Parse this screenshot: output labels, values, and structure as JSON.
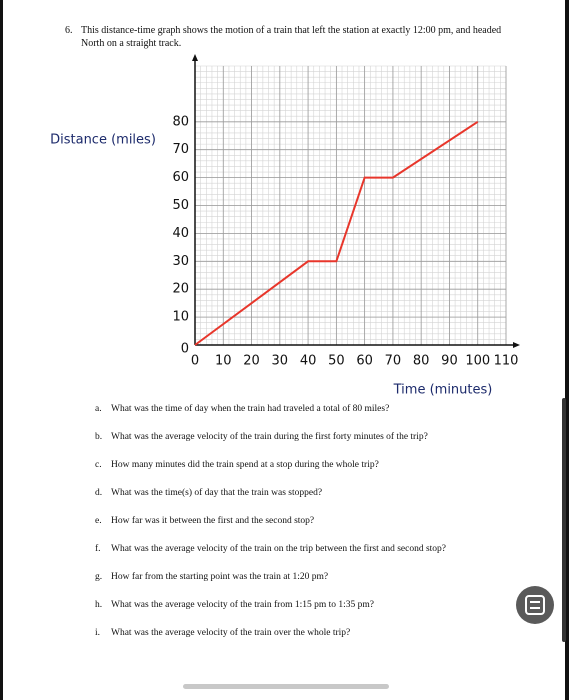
{
  "question": {
    "number": "6.",
    "text": "This distance-time graph shows the motion of a train that left the station at exactly 12:00 pm, and headed North on a straight track."
  },
  "chart_data": {
    "type": "line",
    "x_label": "Time (minutes)",
    "y_label": "Distance (miles)",
    "x": [
      0,
      40,
      50,
      60,
      70,
      100
    ],
    "series": [
      {
        "color": "#e8362b",
        "values": [
          0,
          30,
          30,
          60,
          60,
          80
        ]
      }
    ],
    "xlim": [
      0,
      110
    ],
    "ylim": [
      0,
      100
    ],
    "xticks": [
      0,
      10,
      20,
      30,
      40,
      50,
      60,
      70,
      80,
      90,
      100,
      110
    ],
    "yticks": [
      0,
      10,
      20,
      30,
      40,
      50,
      60,
      70,
      80
    ],
    "grid": true
  },
  "items": [
    {
      "label": "a.",
      "text": "What was the time of day when the train had traveled a total of 80 miles?"
    },
    {
      "label": "b.",
      "text": "What was the average velocity of the train during the first forty minutes of the trip?"
    },
    {
      "label": "c.",
      "text": "How many minutes did the train spend at a stop during the whole trip?"
    },
    {
      "label": "d.",
      "text": "What was the time(s) of day that the train was stopped?"
    },
    {
      "label": "e.",
      "text": "How far was it between the first and the second stop?"
    },
    {
      "label": "f.",
      "text": "What was the average velocity of the train on the trip between the first and second stop?"
    },
    {
      "label": "g.",
      "text": "How far from the starting point was the train at 1:20 pm?"
    },
    {
      "label": "h.",
      "text": "What was the average velocity of the train from 1:15 pm to 1:35 pm?"
    },
    {
      "label": "i.",
      "text": "What was the average velocity of the train over the whole trip?"
    }
  ]
}
